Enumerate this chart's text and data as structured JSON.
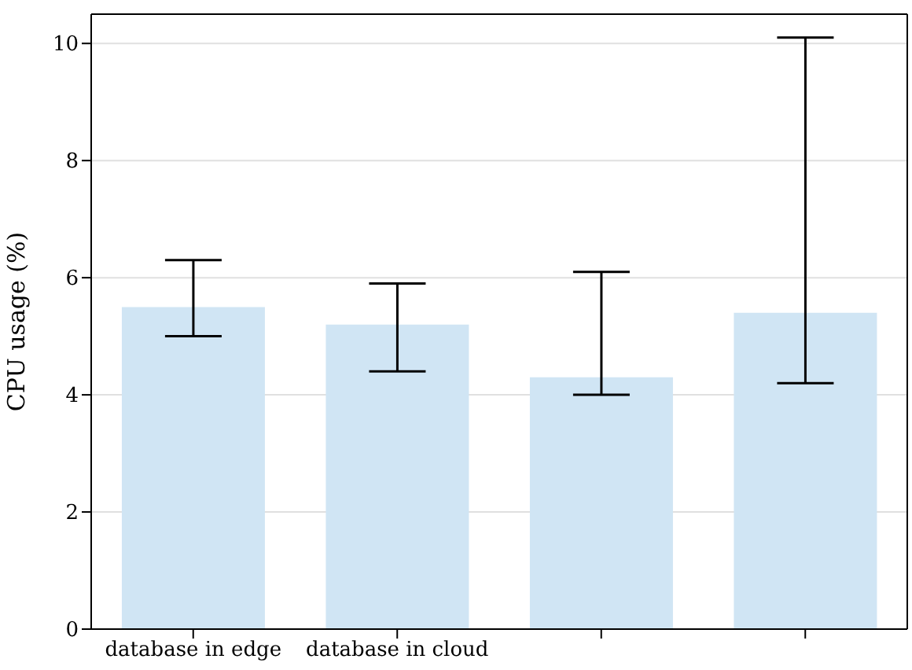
{
  "chart_data": {
    "type": "bar",
    "ylabel": "CPU usage (%)",
    "categories": [
      "database in edge",
      "database in cloud",
      null,
      null
    ],
    "values": [
      5.5,
      5.2,
      4.3,
      5.4
    ],
    "errors": [
      [
        5.0,
        6.3
      ],
      [
        4.4,
        5.9
      ],
      [
        4.0,
        6.1
      ],
      [
        4.2,
        10.1
      ]
    ],
    "color": "#d0e5f4",
    "ylim": [
      0,
      10.5
    ],
    "yticks": [
      0,
      2,
      4,
      6,
      8,
      10
    ],
    "grid": "y",
    "legend": false
  }
}
